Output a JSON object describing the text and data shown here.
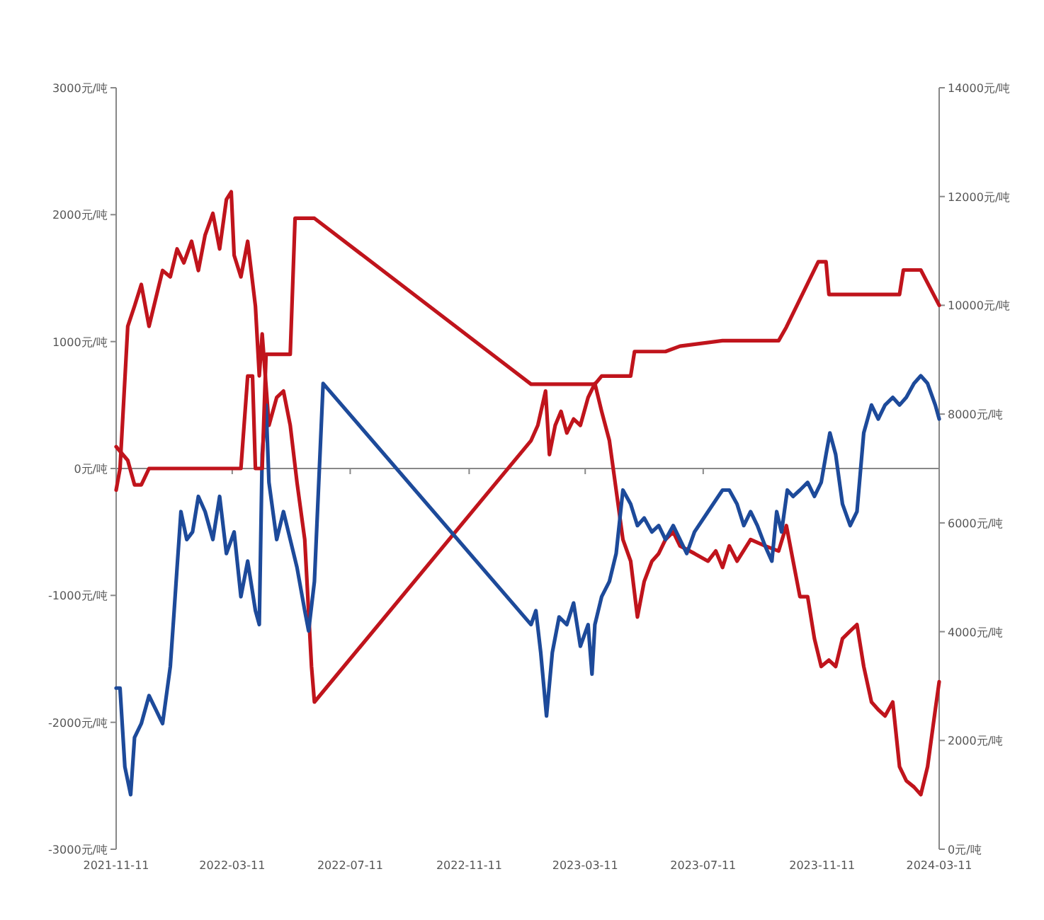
{
  "chart_data": {
    "type": "line",
    "xlim": [
      "2021-11-11",
      "2024-03-11"
    ],
    "xticks": [
      "2021-11-11",
      "2022-03-11",
      "2022-07-11",
      "2022-11-11",
      "2023-03-11",
      "2023-07-11",
      "2023-11-11",
      "2024-03-11"
    ],
    "ylim": [
      -3000,
      3000
    ],
    "yticks": [
      {
        "value": -3000,
        "label": "-3000元/吨"
      },
      {
        "value": -2000,
        "label": "-2000元/吨"
      },
      {
        "value": -1000,
        "label": "-1000元/吨"
      },
      {
        "value": 0,
        "label": "0元/吨"
      },
      {
        "value": 1000,
        "label": "1000元/吨"
      },
      {
        "value": 2000,
        "label": "2000元/吨"
      },
      {
        "value": 3000,
        "label": "3000元/吨"
      }
    ],
    "y2lim": [
      0,
      14000
    ],
    "y2ticks": [
      {
        "value": 0,
        "label": "0元/吨"
      },
      {
        "value": 2000,
        "label": "2000元/吨"
      },
      {
        "value": 4000,
        "label": "4000元/吨"
      },
      {
        "value": 6000,
        "label": "6000元/吨"
      },
      {
        "value": 8000,
        "label": "8000元/吨"
      },
      {
        "value": 10000,
        "label": "10000元/吨"
      },
      {
        "value": 12000,
        "label": "12000元/吨"
      },
      {
        "value": 14000,
        "label": "14000元/吨"
      }
    ],
    "series": [
      {
        "color": "#c0141c",
        "x": [
          "2021-11-11",
          "2021-11-15",
          "2021-11-23",
          "2021-11-30",
          "2021-12-07",
          "2021-12-15",
          "2021-12-22",
          "2021-12-29",
          "2022-01-06",
          "2022-01-13",
          "2022-01-20",
          "2022-01-28",
          "2022-02-04",
          "2022-02-11",
          "2022-02-19",
          "2022-02-26",
          "2022-03-05",
          "2022-03-10",
          "2022-03-13",
          "2022-03-20",
          "2022-03-27",
          "2022-04-04",
          "2022-04-08",
          "2022-04-11",
          "2022-04-18",
          "2022-04-26",
          "2022-05-03",
          "2022-05-10",
          "2022-05-17",
          "2022-05-25",
          "2022-06-01",
          "2022-06-04",
          "2023-01-14",
          "2023-01-21",
          "2023-01-29",
          "2023-02-02",
          "2023-02-08",
          "2023-02-14",
          "2023-02-20",
          "2023-02-27",
          "2023-03-06",
          "2023-03-14",
          "2023-03-21",
          "2023-03-28",
          "2023-04-05",
          "2023-04-12",
          "2023-04-19",
          "2023-04-27",
          "2023-05-04",
          "2023-05-11",
          "2023-05-19",
          "2023-05-26",
          "2023-06-02",
          "2023-06-10",
          "2023-06-17",
          "2023-07-02",
          "2023-07-16",
          "2023-07-24",
          "2023-07-31",
          "2023-08-07",
          "2023-08-15",
          "2023-08-29",
          "2023-09-13",
          "2023-09-27",
          "2023-10-05",
          "2023-10-12",
          "2023-10-19",
          "2023-10-27",
          "2023-11-03",
          "2023-11-10",
          "2023-11-18",
          "2023-11-25",
          "2023-12-02",
          "2023-12-10",
          "2023-12-17",
          "2023-12-24",
          "2024-01-01",
          "2024-01-08",
          "2024-01-15",
          "2024-01-23",
          "2024-01-30",
          "2024-02-06",
          "2024-02-14",
          "2024-02-21",
          "2024-02-28",
          "2024-03-07",
          "2024-03-11"
        ],
        "values": [
          -170,
          0,
          1120,
          1280,
          1450,
          1120,
          1340,
          1560,
          1510,
          1730,
          1620,
          1790,
          1560,
          1840,
          2010,
          1730,
          2120,
          2180,
          1680,
          1510,
          1790,
          1280,
          730,
          1060,
          340,
          560,
          610,
          340,
          -110,
          -560,
          -1560,
          -1840,
          220,
          340,
          610,
          110,
          340,
          450,
          280,
          390,
          340,
          560,
          670,
          450,
          220,
          -170,
          -560,
          -730,
          -1170,
          -890,
          -730,
          -670,
          -560,
          -500,
          -610,
          -670,
          -730,
          -650,
          -780,
          -610,
          -730,
          -560,
          -610,
          -650,
          -450,
          -730,
          -1010,
          -1010,
          -1340,
          -1560,
          -1510,
          -1560,
          -1340,
          -1280,
          -1230,
          -1560,
          -1840,
          -1900,
          -1950,
          -1840,
          -2350,
          -2460,
          -2510,
          -2570,
          -2350,
          -1900,
          -1680
        ]
      },
      {
        "color": "#1d4a9a",
        "x": [
          "2021-11-11",
          "2021-11-15",
          "2021-11-20",
          "2021-11-26",
          "2021-11-30",
          "2021-12-07",
          "2021-12-15",
          "2021-12-22",
          "2021-12-29",
          "2022-01-06",
          "2022-01-10",
          "2022-01-13",
          "2022-01-17",
          "2022-01-23",
          "2022-01-29",
          "2022-02-04",
          "2022-02-11",
          "2022-02-19",
          "2022-02-26",
          "2022-03-05",
          "2022-03-13",
          "2022-03-20",
          "2022-03-27",
          "2022-04-04",
          "2022-04-08",
          "2022-04-11",
          "2022-04-15",
          "2022-04-18",
          "2022-04-26",
          "2022-05-03",
          "2022-05-10",
          "2022-05-17",
          "2022-05-25",
          "2022-05-29",
          "2022-06-04",
          "2022-06-13",
          "2023-01-14",
          "2023-01-19",
          "2023-01-24",
          "2023-01-30",
          "2023-02-05",
          "2023-02-12",
          "2023-02-20",
          "2023-02-27",
          "2023-03-06",
          "2023-03-14",
          "2023-03-18",
          "2023-03-21",
          "2023-03-28",
          "2023-04-05",
          "2023-04-12",
          "2023-04-19",
          "2023-04-27",
          "2023-05-04",
          "2023-05-11",
          "2023-05-19",
          "2023-05-26",
          "2023-06-02",
          "2023-06-10",
          "2023-06-17",
          "2023-06-24",
          "2023-07-02",
          "2023-07-16",
          "2023-07-31",
          "2023-08-07",
          "2023-08-15",
          "2023-08-22",
          "2023-08-29",
          "2023-09-05",
          "2023-09-13",
          "2023-09-20",
          "2023-09-25",
          "2023-09-30",
          "2023-10-06",
          "2023-10-12",
          "2023-10-19",
          "2023-10-27",
          "2023-11-03",
          "2023-11-10",
          "2023-11-15",
          "2023-11-19",
          "2023-11-25",
          "2023-12-02",
          "2023-12-10",
          "2023-12-17",
          "2023-12-24",
          "2024-01-01",
          "2024-01-08",
          "2024-01-15",
          "2024-01-23",
          "2024-01-30",
          "2024-02-06",
          "2024-02-14",
          "2024-02-21",
          "2024-02-28",
          "2024-03-07",
          "2024-03-11"
        ],
        "values": [
          -1730,
          -1730,
          -2350,
          -2570,
          -2120,
          -2010,
          -1790,
          -1900,
          -2010,
          -1560,
          -1120,
          -780,
          -340,
          -560,
          -500,
          -220,
          -340,
          -560,
          -220,
          -670,
          -500,
          -1010,
          -730,
          -1120,
          -1230,
          110,
          500,
          -110,
          -560,
          -340,
          -560,
          -780,
          -1120,
          -1280,
          -890,
          670,
          -1230,
          -1120,
          -1450,
          -1950,
          -1450,
          -1170,
          -1230,
          -1060,
          -1400,
          -1230,
          -1620,
          -1230,
          -1010,
          -890,
          -670,
          -170,
          -280,
          -450,
          -390,
          -500,
          -450,
          -560,
          -450,
          -560,
          -670,
          -500,
          -340,
          -170,
          -170,
          -280,
          -450,
          -340,
          -450,
          -610,
          -730,
          -340,
          -500,
          -170,
          -220,
          -170,
          -110,
          -220,
          -110,
          110,
          280,
          110,
          -280,
          -450,
          -340,
          280,
          500,
          390,
          500,
          560,
          500,
          560,
          670,
          730,
          670,
          500,
          390
        ]
      },
      {
        "color": "#c0141c",
        "axis": "y2",
        "x": [
          "2021-11-11",
          "2021-11-23",
          "2021-11-30",
          "2021-12-07",
          "2021-12-15",
          "2022-03-20",
          "2022-03-27",
          "2022-04-01",
          "2022-04-04",
          "2022-04-11",
          "2022-04-15",
          "2022-05-10",
          "2022-05-15",
          "2022-06-04",
          "2023-01-14",
          "2023-03-21",
          "2023-03-28",
          "2023-04-27",
          "2023-05-01",
          "2023-06-02",
          "2023-06-17",
          "2023-07-31",
          "2023-09-27",
          "2023-10-05",
          "2023-10-27",
          "2023-11-07",
          "2023-11-15",
          "2023-11-18",
          "2024-01-30",
          "2024-02-03",
          "2024-02-21",
          "2024-03-11"
        ],
        "values": [
          7400,
          7150,
          6700,
          6700,
          7000,
          7000,
          8700,
          8700,
          7000,
          7000,
          9100,
          9100,
          11600,
          11600,
          8550,
          8550,
          8700,
          8700,
          9150,
          9150,
          9250,
          9350,
          9350,
          9600,
          10400,
          10800,
          10800,
          10200,
          10200,
          10650,
          10650,
          10000
        ]
      }
    ]
  }
}
